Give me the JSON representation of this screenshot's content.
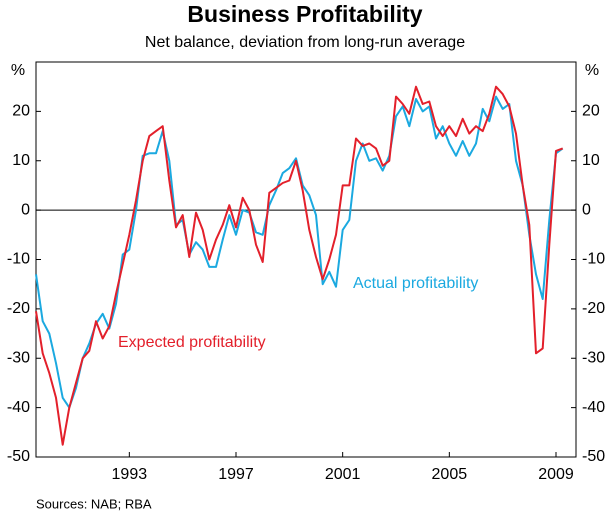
{
  "chart_data": {
    "type": "line",
    "title": "Business Profitability",
    "subtitle": "Net balance, deviation from long-run average",
    "y_unit": "%",
    "source": "Sources: NAB; RBA",
    "xlim": [
      1989.5,
      2009.75
    ],
    "xticks": [
      1993,
      1997,
      2001,
      2005,
      2009
    ],
    "ylim": [
      -50,
      30
    ],
    "yticks": [
      -50,
      -40,
      -30,
      -20,
      -10,
      0,
      10,
      20
    ],
    "x": [
      1989.5,
      1989.75,
      1990,
      1990.25,
      1990.5,
      1990.75,
      1991,
      1991.25,
      1991.5,
      1991.75,
      1992,
      1992.25,
      1992.5,
      1992.75,
      1993,
      1993.25,
      1993.5,
      1993.75,
      1994,
      1994.25,
      1994.5,
      1994.75,
      1995,
      1995.25,
      1995.5,
      1995.75,
      1996,
      1996.25,
      1996.5,
      1996.75,
      1997,
      1997.25,
      1997.5,
      1997.75,
      1998,
      1998.25,
      1998.5,
      1998.75,
      1999,
      1999.25,
      1999.5,
      1999.75,
      2000,
      2000.25,
      2000.5,
      2000.75,
      2001,
      2001.25,
      2001.5,
      2001.75,
      2002,
      2002.25,
      2002.5,
      2002.75,
      2003,
      2003.25,
      2003.5,
      2003.75,
      2004,
      2004.25,
      2004.5,
      2004.75,
      2005,
      2005.25,
      2005.5,
      2005.75,
      2006,
      2006.25,
      2006.5,
      2006.75,
      2007,
      2007.25,
      2007.5,
      2007.75,
      2008,
      2008.25,
      2008.5,
      2008.75,
      2009,
      2009.25
    ],
    "series": [
      {
        "name": "Actual profitability",
        "color": "#1ba9e0",
        "values": [
          -13,
          -22.5,
          -25,
          -31,
          -38,
          -40,
          -36,
          -30,
          -27,
          -23,
          -21,
          -24,
          -19,
          -9,
          -8,
          0,
          11,
          11.5,
          11.5,
          16,
          10,
          -3,
          -2,
          -9,
          -6.5,
          -8,
          -11.5,
          -11.5,
          -6,
          -1,
          -5,
          0,
          -0.5,
          -4.5,
          -5,
          1,
          4,
          7.5,
          8.5,
          10.5,
          5,
          3,
          -1,
          -15,
          -12.5,
          -15.5,
          -4,
          -2,
          10,
          13.5,
          10,
          10.5,
          8,
          11,
          19,
          21,
          17,
          22.5,
          20,
          21,
          14.5,
          17,
          13.5,
          11,
          14,
          11,
          13.5,
          20.5,
          18,
          23,
          20.5,
          21.5,
          10,
          5,
          -5,
          -13,
          -18,
          -2,
          11.5,
          12.5
        ]
      },
      {
        "name": "Expected profitability",
        "color": "#e3202b",
        "values": [
          -20.5,
          -29,
          -33,
          -38,
          -47.5,
          -40,
          -35,
          -30,
          -28.5,
          -22.5,
          -26,
          -23.5,
          -17,
          -11,
          -5,
          2,
          10,
          15,
          16,
          17,
          6,
          -3.5,
          -1,
          -9.5,
          -0.5,
          -4,
          -10,
          -6,
          -3,
          1,
          -3.5,
          2.5,
          0,
          -7,
          -10.5,
          3.5,
          4.5,
          5.5,
          6,
          10,
          4,
          -4,
          -9.5,
          -14,
          -10,
          -5,
          5,
          5,
          14.5,
          13,
          13.5,
          12.5,
          9,
          10,
          23,
          21.5,
          19.5,
          25,
          21.5,
          22,
          17,
          15,
          17,
          15,
          18.5,
          15.5,
          17,
          16,
          19.5,
          25,
          23.5,
          21,
          15.5,
          5,
          -3,
          -29,
          -28,
          -7,
          12,
          12.5
        ]
      }
    ]
  }
}
